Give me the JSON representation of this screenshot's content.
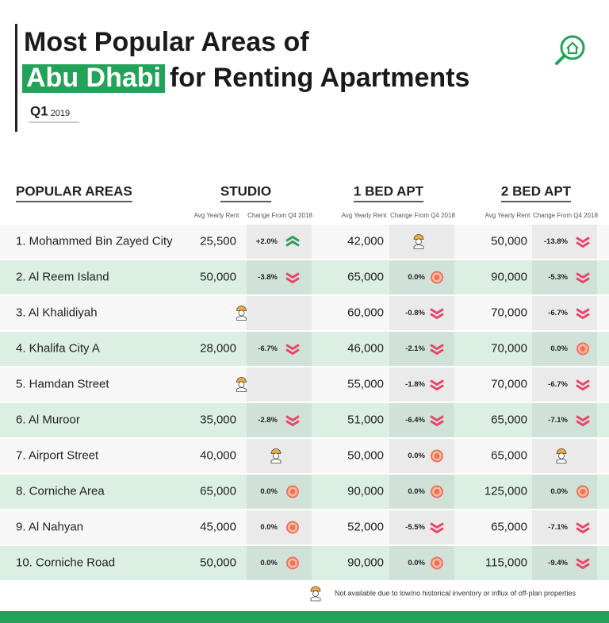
{
  "header": {
    "title_line1": "Most Popular Areas of",
    "title_highlight": "Abu Dhabi",
    "title_rest": "for Renting Apartments",
    "quarter": "Q1",
    "year": "2019"
  },
  "table": {
    "columns": [
      "POPULAR AREAS",
      "STUDIO",
      "1 BED APT",
      "2 BED APT"
    ],
    "subheaders": [
      "Avg Yearly Rent",
      "Change From Q4 2018"
    ],
    "rows": [
      [
        "1. Mohammed Bin Zayed City",
        "25,500",
        "+2.0%",
        "42,000",
        null,
        "50,000",
        "-13.8%"
      ],
      [
        "2. Al Reem Island",
        "50,000",
        "-3.8%",
        "65,000",
        "0.0%",
        "90,000",
        "-5.3%"
      ],
      [
        "3. Al Khalidiyah",
        null,
        null,
        "60,000",
        "-0.8%",
        "70,000",
        "-6.7%"
      ],
      [
        "4. Khalifa City A",
        "28,000",
        "-6.7%",
        "46,000",
        "-2.1%",
        "70,000",
        "0.0%"
      ],
      [
        "5. Hamdan Street",
        null,
        null,
        "55,000",
        "-1.8%",
        "70,000",
        "-6.7%"
      ],
      [
        "6. Al Muroor",
        "35,000",
        "-2.8%",
        "51,000",
        "-6.4%",
        "65,000",
        "-7.1%"
      ],
      [
        "7. Airport Street",
        "40,000",
        null,
        "50,000",
        "0.0%",
        "65,000",
        null
      ],
      [
        "8. Corniche Area",
        "65,000",
        "0.0%",
        "90,000",
        "0.0%",
        "125,000",
        "0.0%"
      ],
      [
        "9. Al Nahyan",
        "45,000",
        "0.0%",
        "52,000",
        "-5.5%",
        "65,000",
        "-7.1%"
      ],
      [
        "10. Corniche Road",
        "50,000",
        "0.0%",
        "90,000",
        "0.0%",
        "115,000",
        "-9.4%"
      ]
    ]
  },
  "footnote": "Not available due to low/no historical inventory or influx of off-plan properties"
}
